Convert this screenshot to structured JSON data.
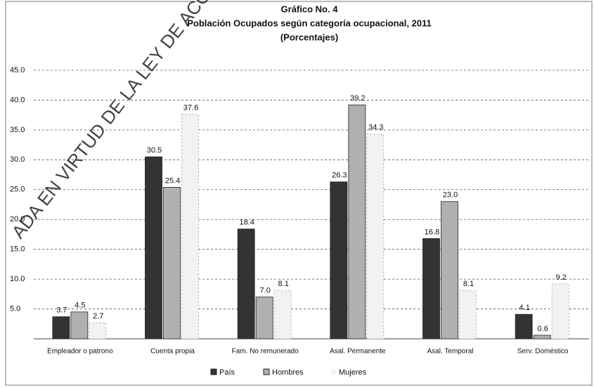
{
  "chart_data": {
    "type": "bar",
    "title": "Gráfico No. 4",
    "subtitle": "Población Ocupados según categoría ocupacional, 2011",
    "unit_note": "(Porcentajes)",
    "watermark": "ADA EN VIRTUD DE LA LEY DE ACCES",
    "categories": [
      "Empleador o patrono",
      "Cuenta propia",
      "Fam. No remunerado",
      "Asal. Permanente",
      "Asal. Temporal",
      "Serv. Doméstico"
    ],
    "series": [
      {
        "name": "País",
        "color": "#333333",
        "values": [
          3.7,
          30.5,
          18.4,
          26.3,
          16.8,
          4.1
        ],
        "value_labels": [
          "3.7",
          "30.5",
          "18.4",
          "26.3",
          "16.8",
          "4.1"
        ]
      },
      {
        "name": "Hombres",
        "color": "#b0b0b0",
        "values": [
          4.5,
          25.4,
          7.0,
          39.2,
          23.0,
          0.6
        ],
        "value_labels": [
          "4.5",
          "25.4",
          "7.0",
          "39.2",
          "23.0",
          "0.6"
        ]
      },
      {
        "name": "Mujeres",
        "color": "#f2f2f2",
        "values": [
          2.7,
          37.6,
          8.1,
          34.3,
          8.1,
          9.2
        ],
        "value_labels": [
          "2.7",
          "37.6",
          "8.1",
          "34.3",
          "8.1",
          "9.2"
        ]
      }
    ],
    "ylim": [
      0,
      45
    ],
    "yticks": [
      {
        "value": 5,
        "label": "5.0"
      },
      {
        "value": 10,
        "label": "10.0"
      },
      {
        "value": 15,
        "label": "15.0"
      },
      {
        "value": 20,
        "label": "20.0"
      },
      {
        "value": 25,
        "label": "25.0"
      },
      {
        "value": 30,
        "label": "30.0"
      },
      {
        "value": 35,
        "label": "35.0"
      },
      {
        "value": 40,
        "label": "40.0"
      },
      {
        "value": 45,
        "label": "45.0"
      }
    ],
    "grid": true,
    "legend": "bottom"
  }
}
